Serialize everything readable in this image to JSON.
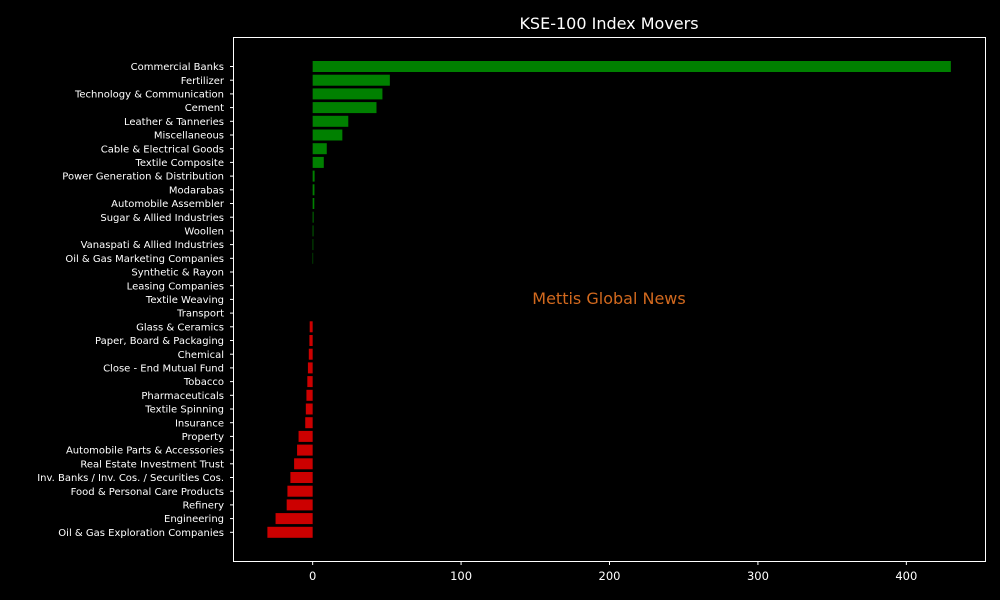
{
  "chart_data": {
    "type": "bar",
    "orientation": "horizontal",
    "title": "KSE-100 Index Movers",
    "watermark": "Mettis Global News",
    "xlabel": "",
    "ylabel": "",
    "xlim": [
      -53,
      453
    ],
    "xticks": [
      0,
      100,
      200,
      300,
      400
    ],
    "grid": false,
    "legend": "none",
    "colors": {
      "positive": "#008000",
      "negative": "#cc0000",
      "background": "#000000",
      "text": "#ffffff",
      "watermark": "#d2691e"
    },
    "categories": [
      "Commercial Banks",
      "Fertilizer",
      "Technology & Communication",
      "Cement",
      "Leather & Tanneries",
      "Miscellaneous",
      "Cable & Electrical Goods",
      "Textile Composite",
      "Power Generation & Distribution",
      "Modarabas",
      "Automobile Assembler",
      "Sugar & Allied Industries",
      "Woollen",
      "Vanaspati & Allied Industries",
      "Oil & Gas Marketing Companies",
      "Synthetic & Rayon",
      "Leasing Companies",
      "Textile Weaving",
      "Transport",
      "Glass & Ceramics",
      "Paper, Board & Packaging",
      "Chemical",
      "Close - End Mutual Fund",
      "Tobacco",
      "Pharmaceuticals",
      "Textile Spinning",
      "Insurance",
      "Property",
      "Automobile Parts & Accessories",
      "Real Estate Investment Trust",
      "Inv. Banks / Inv. Cos. / Securities Cos.",
      "Food & Personal Care Products",
      "Refinery",
      "Engineering",
      "Oil & Gas Exploration Companies"
    ],
    "values": [
      430,
      52,
      47,
      43,
      24,
      20,
      9.5,
      7.5,
      1.3,
      1.2,
      1.1,
      0.6,
      0.5,
      0.4,
      0.3,
      0,
      0,
      0,
      0,
      -2,
      -2.2,
      -2.6,
      -3.2,
      -3.6,
      -4.2,
      -4.6,
      -5,
      -9.5,
      -10.5,
      -12.5,
      -15,
      -17,
      -17.5,
      -25,
      -30.5
    ]
  }
}
